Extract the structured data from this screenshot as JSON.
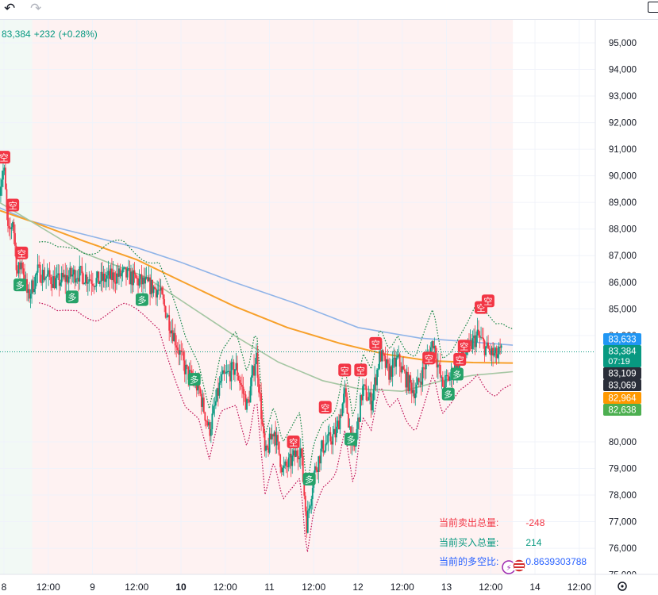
{
  "toolbar": {
    "undo_icon": "undo-icon",
    "redo_icon": "redo-icon",
    "window_icon": "window-icon"
  },
  "quote": {
    "price": "83,384",
    "change": "+232",
    "change_pct": "(+0.28%)"
  },
  "chart_data": {
    "type": "candlestick",
    "y_ticks": [
      "95,000",
      "94,000",
      "93,000",
      "92,000",
      "91,000",
      "90,000",
      "89,000",
      "88,000",
      "87,000",
      "86,000",
      "85,000",
      "84,000",
      "80,000",
      "79,000",
      "78,000",
      "77,000",
      "76,000",
      "75,000"
    ],
    "x_ticks": [
      "8",
      "12:00",
      "9",
      "12:00",
      "10",
      "12:00",
      "11",
      "12:00",
      "12",
      "12:00",
      "13",
      "12:00",
      "14",
      "12:00"
    ],
    "ylim": [
      74700,
      95800
    ],
    "price_labels": [
      {
        "value": 83633,
        "text": "83,633",
        "color": "#2196f3"
      },
      {
        "value": 83384,
        "text": "83,384",
        "color": "#089981",
        "sub": "07:19"
      },
      {
        "value": 83109,
        "text": "83,109",
        "color": "#2a2e39"
      },
      {
        "value": 83069,
        "text": "83,069",
        "color": "#2a2e39"
      },
      {
        "value": 82964,
        "text": "82,964",
        "color": "#ff9800"
      },
      {
        "value": 82638,
        "text": "82,638",
        "color": "#4caf50"
      }
    ],
    "signals": [
      {
        "label": "空",
        "x": 8.0,
        "y": 90700,
        "type": "sell"
      },
      {
        "label": "空",
        "x": 8.1,
        "y": 88900,
        "type": "sell"
      },
      {
        "label": "空",
        "x": 8.2,
        "y": 87100,
        "type": "sell"
      },
      {
        "label": "多",
        "x": 8.18,
        "y": 85900,
        "type": "buy"
      },
      {
        "label": "多",
        "x": 8.77,
        "y": 85450,
        "type": "buy"
      },
      {
        "label": "多",
        "x": 9.56,
        "y": 85350,
        "type": "buy"
      },
      {
        "label": "多",
        "x": 10.15,
        "y": 82350,
        "type": "buy"
      },
      {
        "label": "空",
        "x": 11.27,
        "y": 80000,
        "type": "sell"
      },
      {
        "label": "多",
        "x": 11.45,
        "y": 78600,
        "type": "buy"
      },
      {
        "label": "空",
        "x": 11.63,
        "y": 81300,
        "type": "sell"
      },
      {
        "label": "空",
        "x": 11.85,
        "y": 82700,
        "type": "sell"
      },
      {
        "label": "多",
        "x": 11.92,
        "y": 80100,
        "type": "buy"
      },
      {
        "label": "空",
        "x": 12.03,
        "y": 82700,
        "type": "sell"
      },
      {
        "label": "空",
        "x": 12.2,
        "y": 83700,
        "type": "sell"
      },
      {
        "label": "空",
        "x": 12.8,
        "y": 83150,
        "type": "sell"
      },
      {
        "label": "多",
        "x": 13.02,
        "y": 81800,
        "type": "buy"
      },
      {
        "label": "多",
        "x": 13.12,
        "y": 82550,
        "type": "buy"
      },
      {
        "label": "空",
        "x": 13.15,
        "y": 83100,
        "type": "sell"
      },
      {
        "label": "空",
        "x": 13.2,
        "y": 83600,
        "type": "sell"
      },
      {
        "label": "空",
        "x": 13.39,
        "y": 85050,
        "type": "sell"
      },
      {
        "label": "空",
        "x": 13.47,
        "y": 85300,
        "type": "sell"
      }
    ]
  },
  "stats": {
    "sell_label": "当前卖出总量:",
    "sell_value": "-248",
    "buy_label": "当前买入总量:",
    "buy_value": "214",
    "ratio_label": "当前的多空比:",
    "ratio_value": "0.8639303788"
  },
  "colors": {
    "up": "#089981",
    "down": "#f23645",
    "blue_ma": "#90b4e8",
    "orange_ma": "#f7a02a",
    "green_ma": "#a5c6a3"
  }
}
